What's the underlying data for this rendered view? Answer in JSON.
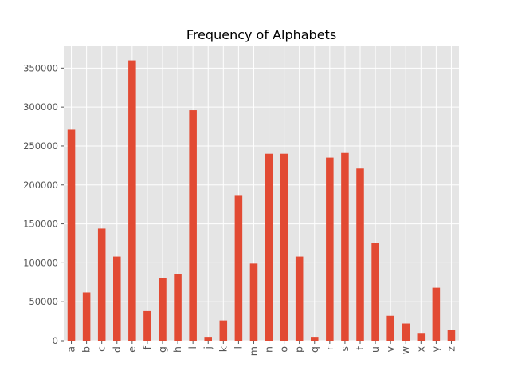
{
  "chart_data": {
    "type": "bar",
    "title": "Frequency of Alphabets",
    "xlabel": "",
    "ylabel": "",
    "categories": [
      "a",
      "b",
      "c",
      "d",
      "e",
      "f",
      "g",
      "h",
      "i",
      "j",
      "k",
      "l",
      "m",
      "n",
      "o",
      "p",
      "q",
      "r",
      "s",
      "t",
      "u",
      "v",
      "w",
      "x",
      "y",
      "z"
    ],
    "values": [
      271000,
      62000,
      144000,
      108000,
      360000,
      38000,
      80000,
      86000,
      296000,
      5000,
      26000,
      186000,
      99000,
      240000,
      240000,
      108000,
      5000,
      235000,
      241000,
      221000,
      126000,
      32000,
      22000,
      10000,
      68000,
      14000
    ],
    "ylim": [
      0,
      378000
    ],
    "yticks": [
      0,
      50000,
      100000,
      150000,
      200000,
      250000,
      300000,
      350000
    ],
    "ytick_labels": [
      "0",
      "50000",
      "100000",
      "150000",
      "200000",
      "250000",
      "300000",
      "350000"
    ],
    "grid": true,
    "bar_color": "#E24A33",
    "background_color": "#E5E5E5",
    "grid_color": "#FFFFFF"
  }
}
